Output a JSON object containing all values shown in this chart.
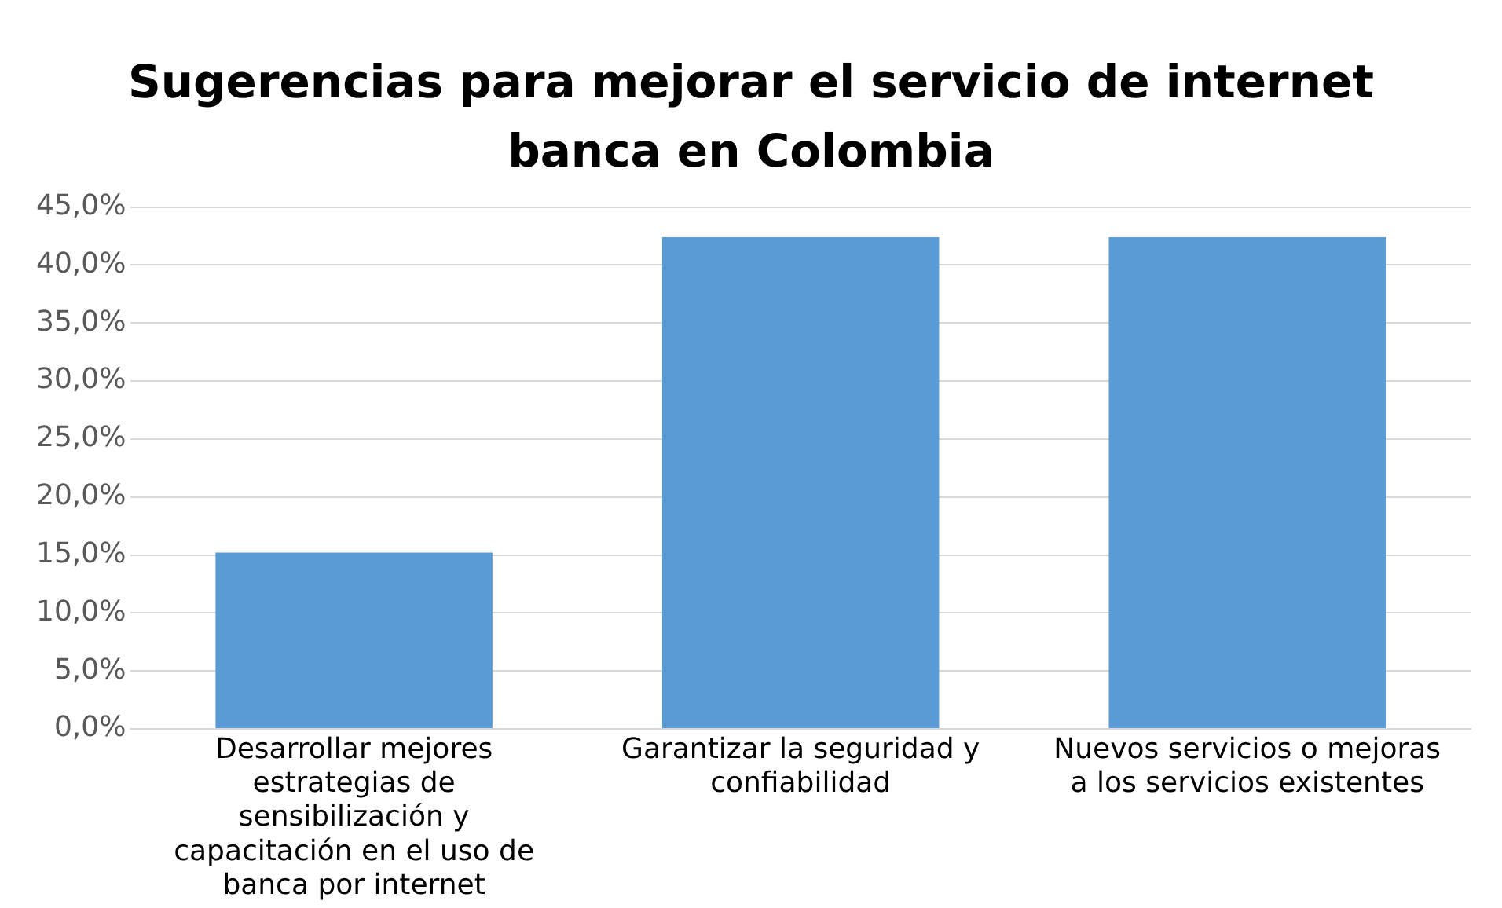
{
  "chart_data": {
    "type": "bar",
    "title": "Sugerencias para mejorar el servicio de internet banca en Colombia",
    "categories": [
      "Desarrollar mejores estrategias de sensibilización y capacitación en el uso de banca por internet",
      "Garantizar la seguridad y confiabilidad",
      "Nuevos servicios o mejoras a los servicios existentes"
    ],
    "values": [
      15.2,
      42.4,
      42.4
    ],
    "color": "#5b9bd5",
    "ylim": [
      0,
      45
    ],
    "yticks": [
      {
        "value": 0,
        "label": "0,0%"
      },
      {
        "value": 5,
        "label": "5,0%"
      },
      {
        "value": 10,
        "label": "10,0%"
      },
      {
        "value": 15,
        "label": "15,0%"
      },
      {
        "value": 20,
        "label": "20,0%"
      },
      {
        "value": 25,
        "label": "25,0%"
      },
      {
        "value": 30,
        "label": "30,0%"
      },
      {
        "value": 35,
        "label": "35,0%"
      },
      {
        "value": 40,
        "label": "40,0%"
      },
      {
        "value": 45,
        "label": "45,0%"
      }
    ],
    "grid": "y"
  }
}
